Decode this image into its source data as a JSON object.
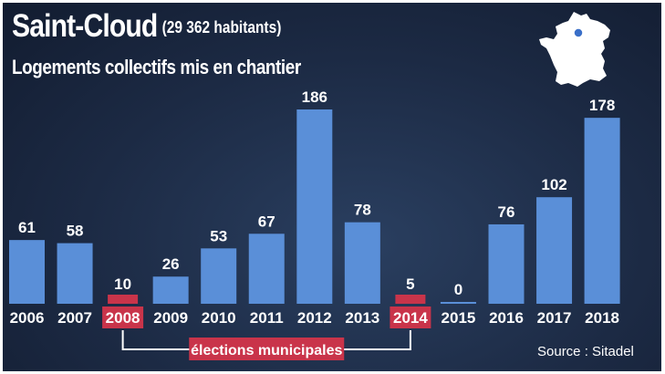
{
  "header": {
    "title": "Saint-Cloud",
    "population": "(29 362 habitants)",
    "subtitle": "Logements collectifs mis en chantier"
  },
  "annotation": {
    "label": "élections municipales",
    "highlight_years": [
      "2008",
      "2014"
    ],
    "highlight_color": "#c9344a"
  },
  "source": "Source : Sitadel",
  "colors": {
    "bar": "#5a8fd8",
    "text": "#ffffff",
    "map": "#ffffff",
    "map_marker": "#3a6fc8"
  },
  "chart_data": {
    "type": "bar",
    "title": "Logements collectifs mis en chantier",
    "categories": [
      "2006",
      "2007",
      "2008",
      "2009",
      "2010",
      "2011",
      "2012",
      "2013",
      "2014",
      "2015",
      "2016",
      "2017",
      "2018"
    ],
    "values": [
      61,
      58,
      10,
      26,
      53,
      67,
      186,
      78,
      5,
      0,
      76,
      102,
      178
    ],
    "ylim": [
      0,
      186
    ],
    "grid": false,
    "legend": "none"
  }
}
